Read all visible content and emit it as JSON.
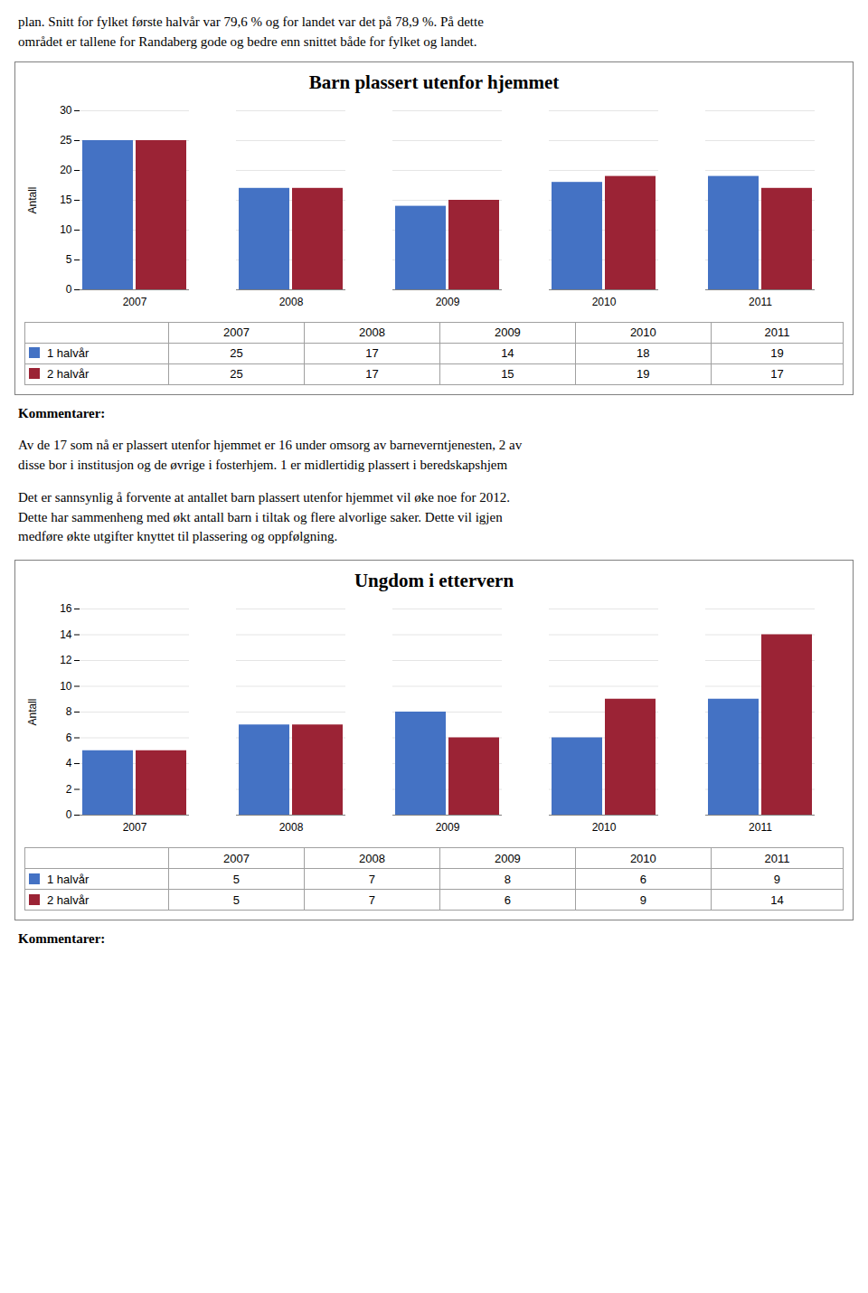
{
  "header": "plan. Snitt for fylket første halvår var 79,6 % og for landet var det på 78,9 %. På dette\nområdet er tallene for Randaberg gode og bedre enn snittet både for fylket og landet.",
  "chart_data": [
    {
      "type": "bar",
      "title": "Barn plassert utenfor hjemmet",
      "ylabel": "Antall",
      "categories": [
        "2007",
        "2008",
        "2009",
        "2010",
        "2011"
      ],
      "series": [
        {
          "name": "1 halvår",
          "color": "#4472C4",
          "values": [
            25,
            17,
            14,
            18,
            19
          ]
        },
        {
          "name": "2 halvår",
          "color": "#9B2335",
          "values": [
            25,
            17,
            15,
            19,
            17
          ]
        }
      ],
      "ylim": [
        0,
        30
      ],
      "yticks": [
        0,
        5,
        10,
        15,
        20,
        25,
        30
      ],
      "grid": true,
      "legend": "bottom",
      "annotations": [
        "Kommentarer:",
        "Av de 17 som nå er plassert utenfor hjemmet er 16 under omsorg av barneverntjenesten, 2 av\ndisse bor i institusjon og de øvrige i fosterhjem. 1 er midlertidig plassert i beredskapshjem",
        "Det er sannsynlig å forvente at antallet barn plassert utenfor hjemmet vil øke noe for 2012.\nDette har sammenheng med økt antall barn i tiltak og flere alvorlige saker. Dette vil igjen\nmedføre økte utgifter knyttet til plassering og oppfølgning."
      ]
    },
    {
      "type": "bar",
      "title": "Ungdom i ettervern",
      "ylabel": "Antall",
      "categories": [
        "2007",
        "2008",
        "2009",
        "2010",
        "2011"
      ],
      "series": [
        {
          "name": "1 halvår",
          "color": "#4472C4",
          "values": [
            5,
            7,
            8,
            6,
            9
          ]
        },
        {
          "name": "2 halvår",
          "color": "#9B2335",
          "values": [
            5,
            7,
            6,
            9,
            14
          ]
        }
      ],
      "ylim": [
        0,
        16
      ],
      "yticks": [
        0,
        2,
        4,
        6,
        8,
        10,
        12,
        14,
        16
      ],
      "grid": true,
      "legend": "bottom",
      "annotations": [
        "Kommentarer:"
      ]
    }
  ]
}
